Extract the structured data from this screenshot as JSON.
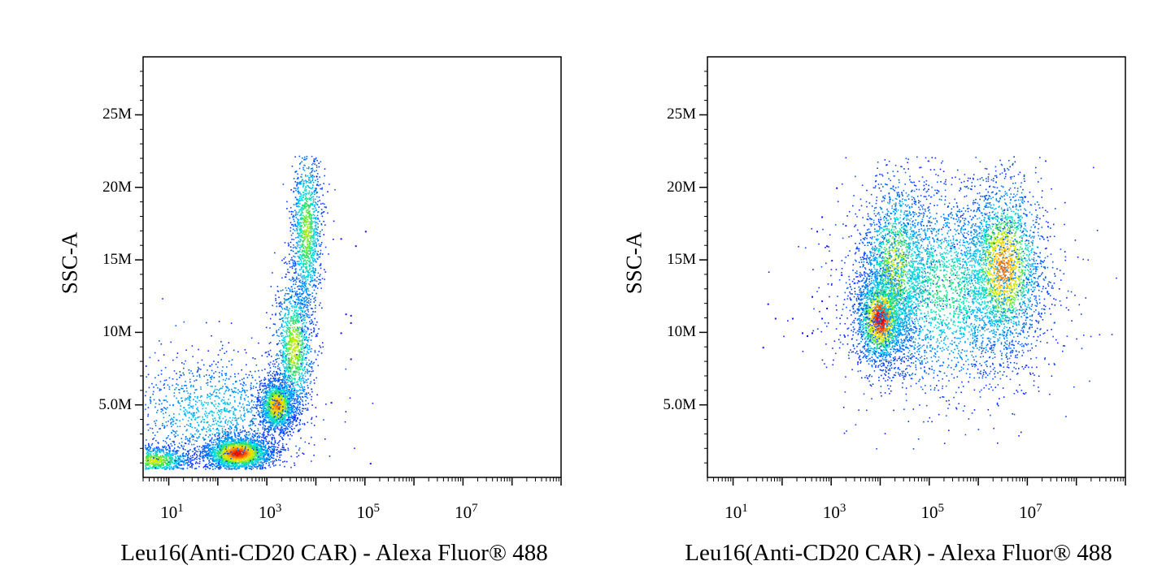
{
  "chart_data": [
    {
      "type": "scatter",
      "subtype": "density-dot-plot",
      "xlabel": "Leu16(Anti-CD20 CAR) - Alexa Fluor® 488",
      "ylabel": "SSC-A",
      "x_scale": "log",
      "xlim": [
        3,
        1000000000
      ],
      "ylim": [
        0,
        29000000
      ],
      "x_ticks": [
        {
          "exp": 1
        },
        {
          "exp": 3
        },
        {
          "exp": 5
        },
        {
          "exp": 7
        }
      ],
      "y_ticks": [
        {
          "value": 5000000,
          "label": "5.0M"
        },
        {
          "value": 10000000,
          "label": "10M"
        },
        {
          "value": 15000000,
          "label": "15M"
        },
        {
          "value": 20000000,
          "label": "20M"
        },
        {
          "value": 25000000,
          "label": "25M"
        }
      ],
      "colormap": [
        "#1010ff",
        "#0090ff",
        "#00e0e0",
        "#30e060",
        "#c8f000",
        "#ffd000",
        "#ff6000",
        "#e00000"
      ],
      "populations": [
        {
          "x_log10_center": 0.7,
          "y_center": 1200000,
          "x_log10_spread": 0.4,
          "y_spread": 500000,
          "weight": 0.12,
          "peak": 0.55
        },
        {
          "x_log10_center": 2.4,
          "y_center": 1700000,
          "x_log10_spread": 0.35,
          "y_spread": 600000,
          "weight": 0.28,
          "peak": 0.95
        },
        {
          "x_log10_center": 3.2,
          "y_center": 5000000,
          "x_log10_spread": 0.18,
          "y_spread": 900000,
          "weight": 0.18,
          "peak": 0.8
        },
        {
          "x_log10_center": 3.55,
          "y_center": 9000000,
          "x_log10_spread": 0.2,
          "y_spread": 2500000,
          "weight": 0.14,
          "peak": 0.55
        },
        {
          "x_log10_center": 3.8,
          "y_center": 17000000,
          "x_log10_spread": 0.15,
          "y_spread": 3000000,
          "weight": 0.14,
          "peak": 0.5
        },
        {
          "x_log10_center": 1.9,
          "y_center": 4500000,
          "x_log10_spread": 0.9,
          "y_spread": 2000000,
          "weight": 0.14,
          "peak": 0.2
        }
      ],
      "outliers": [
        [
          4.7,
          11200000
        ],
        [
          4.6,
          11300000
        ],
        [
          4.7,
          10700000
        ],
        [
          4.5,
          10000000
        ],
        [
          5.0,
          17000000
        ],
        [
          4.8,
          16000000
        ],
        [
          4.5,
          16500000
        ],
        [
          4.0,
          20800000
        ],
        [
          4.3,
          5200000
        ],
        [
          5.1,
          1000000
        ],
        [
          4.7,
          8200000
        ]
      ]
    },
    {
      "type": "scatter",
      "subtype": "density-dot-plot",
      "xlabel": "Leu16(Anti-CD20 CAR) - Alexa Fluor® 488",
      "ylabel": "SSC-A",
      "x_scale": "log",
      "xlim": [
        3,
        1000000000
      ],
      "ylim": [
        0,
        29000000
      ],
      "x_ticks": [
        {
          "exp": 1
        },
        {
          "exp": 3
        },
        {
          "exp": 5
        },
        {
          "exp": 7
        }
      ],
      "y_ticks": [
        {
          "value": 5000000,
          "label": "5.0M"
        },
        {
          "value": 10000000,
          "label": "10M"
        },
        {
          "value": 15000000,
          "label": "15M"
        },
        {
          "value": 20000000,
          "label": "20M"
        },
        {
          "value": 25000000,
          "label": "25M"
        }
      ],
      "colormap": [
        "#1010ff",
        "#0090ff",
        "#00e0e0",
        "#30e060",
        "#c8f000",
        "#ffd000",
        "#ff6000",
        "#e00000"
      ],
      "populations": [
        {
          "x_log10_center": 4.0,
          "y_center": 11000000,
          "x_log10_spread": 0.25,
          "y_spread": 1600000,
          "weight": 0.22,
          "peak": 1.0
        },
        {
          "x_log10_center": 4.3,
          "y_center": 14500000,
          "x_log10_spread": 0.35,
          "y_spread": 3200000,
          "weight": 0.18,
          "peak": 0.55
        },
        {
          "x_log10_center": 6.5,
          "y_center": 14500000,
          "x_log10_spread": 0.4,
          "y_spread": 3000000,
          "weight": 0.25,
          "peak": 0.8
        },
        {
          "x_log10_center": 5.3,
          "y_center": 13000000,
          "x_log10_spread": 1.0,
          "y_spread": 3500000,
          "weight": 0.35,
          "peak": 0.35
        }
      ],
      "outliers": [
        [
          1.7,
          12000000
        ],
        [
          1.6,
          9000000
        ],
        [
          1.85,
          11000000
        ],
        [
          2.2,
          11000000
        ],
        [
          2.4,
          10000000
        ],
        [
          2.5,
          9800000
        ],
        [
          2.6,
          10000000
        ],
        [
          2.6,
          12500000
        ],
        [
          2.8,
          11000000
        ],
        [
          2.9,
          11700000
        ],
        [
          2.8,
          12200000
        ],
        [
          3.1,
          20000000
        ],
        [
          2.9,
          16000000
        ],
        [
          3.0,
          15000000
        ],
        [
          3.2,
          14000000
        ],
        [
          2.7,
          17000000
        ],
        [
          2.8,
          18000000
        ]
      ]
    }
  ]
}
